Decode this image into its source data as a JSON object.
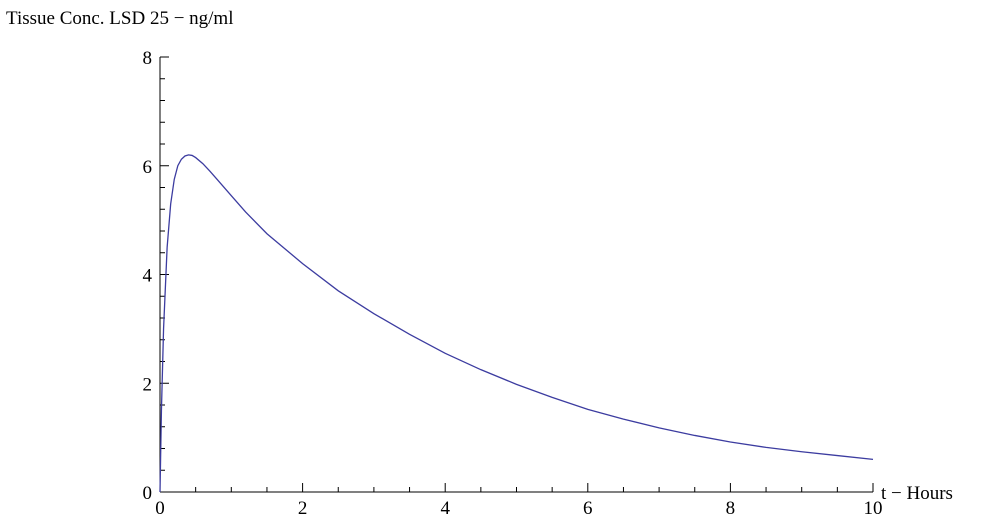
{
  "chart_data": {
    "type": "line",
    "xlabel": "t − Hours",
    "ylabel": "Tissue Conc. LSD 25 − ng/ml",
    "xlim": [
      0,
      10
    ],
    "ylim": [
      0,
      8
    ],
    "x_ticks": [
      0,
      2,
      4,
      6,
      8,
      10
    ],
    "y_ticks": [
      0,
      2,
      4,
      6,
      8
    ],
    "x_minor_step": 0.5,
    "y_minor_step": 0.4,
    "grid": false,
    "line_color": "#3c3ca0",
    "series": [
      {
        "x": [
          0,
          0.02,
          0.05,
          0.1,
          0.15,
          0.2,
          0.25,
          0.3,
          0.35,
          0.4,
          0.45,
          0.5,
          0.6,
          0.7,
          0.8,
          1.0,
          1.2,
          1.5,
          2.0,
          2.5,
          3.0,
          3.5,
          4.0,
          4.5,
          5.0,
          5.5,
          6.0,
          6.5,
          7.0,
          7.5,
          8.0,
          8.5,
          9.0,
          9.5,
          10.0
        ],
        "y": [
          0,
          1.5,
          3.0,
          4.5,
          5.3,
          5.75,
          6.0,
          6.12,
          6.18,
          6.2,
          6.19,
          6.15,
          6.04,
          5.9,
          5.75,
          5.45,
          5.15,
          4.75,
          4.2,
          3.7,
          3.28,
          2.9,
          2.55,
          2.25,
          1.98,
          1.74,
          1.52,
          1.34,
          1.18,
          1.04,
          0.92,
          0.82,
          0.74,
          0.67,
          0.6
        ]
      }
    ]
  }
}
